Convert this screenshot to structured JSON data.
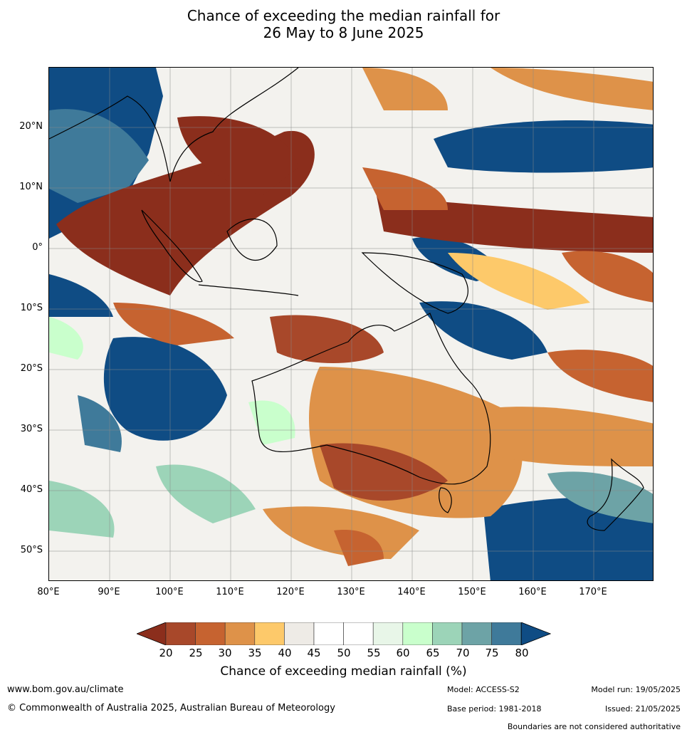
{
  "title_line1": "Chance of exceeding the median rainfall for",
  "title_line2": "26 May to 8 June 2025",
  "lat_ticks": [
    "20°N",
    "10°N",
    "0°",
    "10°S",
    "20°S",
    "30°S",
    "40°S",
    "50°S"
  ],
  "lon_ticks": [
    "80°E",
    "90°E",
    "100°E",
    "110°E",
    "120°E",
    "130°E",
    "140°E",
    "150°E",
    "160°E",
    "170°E"
  ],
  "colorbar": {
    "levels": [
      "20",
      "25",
      "30",
      "35",
      "40",
      "45",
      "50",
      "55",
      "60",
      "65",
      "70",
      "75",
      "80"
    ],
    "colors": [
      "#8b2e1c",
      "#a8482a",
      "#c66330",
      "#de9249",
      "#fdc96a",
      "#eeebe6",
      "#ffffff",
      "#ffffff",
      "#e8f6e8",
      "#c9ffcc",
      "#9cd4b8",
      "#6da3a6",
      "#3f7a9a",
      "#0f4c84"
    ],
    "title": "Chance of exceeding median rainfall (%)"
  },
  "footer": {
    "website": "www.bom.gov.au/climate",
    "copyright": "© Commonwealth of Australia 2025, Australian Bureau of Meteorology",
    "model": "Model: ACCESS-S2",
    "base_period": "Base period: 1981-2018",
    "model_run": "Model run: 19/05/2025",
    "issued": "Issued: 21/05/2025",
    "disclaimer": "Boundaries are not considered authoritative"
  }
}
